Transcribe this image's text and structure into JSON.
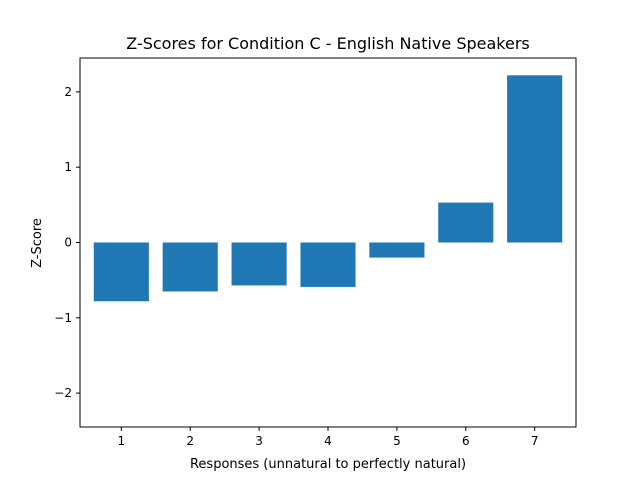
{
  "chart_data": {
    "type": "bar",
    "title": "Z-Scores for Condition C - English Native Speakers",
    "xlabel": "Responses (unnatural to perfectly natural)",
    "ylabel": "Z-Score",
    "categories": [
      "1",
      "2",
      "3",
      "4",
      "5",
      "6",
      "7"
    ],
    "values": [
      -0.78,
      -0.65,
      -0.57,
      -0.59,
      -0.2,
      0.53,
      2.22
    ],
    "ylim": [
      -2.45,
      2.45
    ],
    "yticks": [
      -2,
      -1,
      0,
      1,
      2
    ],
    "ytick_labels": [
      "−2",
      "−1",
      "0",
      "1",
      "2"
    ],
    "bar_color": "#1f77b4",
    "grid": false,
    "legend": "none"
  }
}
